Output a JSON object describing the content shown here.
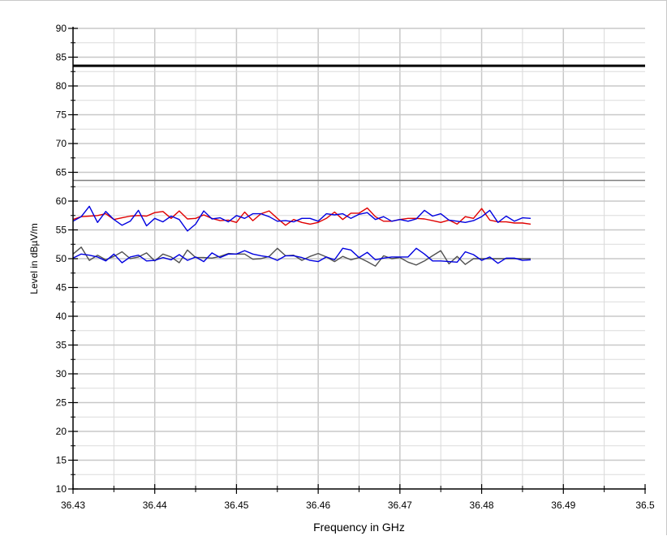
{
  "chart_data": {
    "type": "line",
    "xlabel": "Frequency in GHz",
    "ylabel": "Level in dBµV/m",
    "xlim": [
      36.43,
      36.5
    ],
    "ylim": [
      10,
      90
    ],
    "x_ticks": [
      36.43,
      36.44,
      36.45,
      36.46,
      36.47,
      36.48,
      36.49,
      36.5
    ],
    "x_tick_labels": [
      "36.43",
      "36.44",
      "36.45",
      "36.46",
      "36.47",
      "36.48",
      "36.49",
      "36.5"
    ],
    "y_ticks": [
      10,
      15,
      20,
      25,
      30,
      35,
      40,
      45,
      50,
      55,
      60,
      65,
      70,
      75,
      80,
      85,
      90
    ],
    "y_tick_labels": [
      "10",
      "15",
      "20",
      "25",
      "30",
      "35",
      "40",
      "45",
      "50",
      "55",
      "60",
      "65",
      "70",
      "75",
      "80",
      "85",
      "90"
    ],
    "grid": true,
    "limit_lines": [
      {
        "value": 83.5,
        "color": "#000000",
        "style": "thick"
      },
      {
        "value": 63.6,
        "color": "#808080",
        "style": "thin"
      }
    ],
    "series": [
      {
        "color": "#e00000",
        "x_start": 36.43,
        "x_step": 0.001,
        "values": [
          56.8,
          57.3,
          57.4,
          57.5,
          57.8,
          56.8,
          57.1,
          57.4,
          57.5,
          57.4,
          58.0,
          58.2,
          57.0,
          58.3,
          56.9,
          57.0,
          57.6,
          57.0,
          56.6,
          56.7,
          56.3,
          58.1,
          56.6,
          57.8,
          58.3,
          57.0,
          55.8,
          56.8,
          56.3,
          56.0,
          56.3,
          57.0,
          58.1,
          56.8,
          57.9,
          57.9,
          58.8,
          57.3,
          56.5,
          56.5,
          56.8,
          57.0,
          57.0,
          56.9,
          56.6,
          56.3,
          56.7,
          56.0,
          57.3,
          57.0,
          58.7,
          56.7,
          56.4,
          56.4,
          56.2,
          56.2,
          56.0
        ]
      },
      {
        "color": "#0000e0",
        "x_start": 36.43,
        "x_step": 0.001,
        "values": [
          56.5,
          57.3,
          59.1,
          56.3,
          58.2,
          56.8,
          55.8,
          56.5,
          58.4,
          55.7,
          57.0,
          56.4,
          57.4,
          56.8,
          54.8,
          56.0,
          58.3,
          56.9,
          57.1,
          56.4,
          57.5,
          57.0,
          57.8,
          57.8,
          57.3,
          56.5,
          56.6,
          56.4,
          57.0,
          57.0,
          56.5,
          57.8,
          57.6,
          57.8,
          57.0,
          57.7,
          58.0,
          56.8,
          57.3,
          56.5,
          56.8,
          56.5,
          56.9,
          58.4,
          57.4,
          57.8,
          56.7,
          56.5,
          56.3,
          56.6,
          57.3,
          58.4,
          56.3,
          57.4,
          56.5,
          57.1,
          57.0
        ]
      },
      {
        "color": "#505050",
        "x_start": 36.43,
        "x_step": 0.001,
        "values": [
          50.8,
          52.0,
          49.7,
          50.6,
          49.8,
          50.4,
          51.2,
          50.0,
          50.3,
          51.0,
          49.6,
          50.8,
          50.3,
          49.3,
          51.5,
          50.2,
          50.2,
          50.1,
          50.4,
          50.9,
          50.8,
          50.8,
          49.9,
          50.0,
          50.4,
          51.8,
          50.5,
          50.6,
          49.7,
          50.4,
          50.9,
          50.3,
          49.5,
          50.4,
          49.8,
          50.2,
          49.5,
          48.7,
          50.5,
          50.0,
          50.2,
          49.4,
          48.9,
          49.6,
          50.5,
          51.4,
          49.1,
          50.4,
          49.0,
          50.0,
          50.0,
          50.0,
          50.0,
          50.0,
          50.0,
          50.0,
          50.0
        ]
      },
      {
        "color": "#0000e0",
        "x_start": 36.43,
        "x_step": 0.001,
        "values": [
          50.1,
          50.8,
          50.6,
          50.3,
          49.6,
          50.8,
          49.3,
          50.3,
          50.6,
          49.6,
          49.7,
          50.2,
          49.8,
          50.7,
          49.7,
          50.3,
          49.5,
          51.0,
          50.2,
          50.8,
          50.8,
          51.4,
          50.8,
          50.5,
          50.3,
          49.7,
          50.5,
          50.5,
          50.2,
          49.7,
          49.5,
          50.3,
          49.8,
          51.8,
          51.5,
          50.2,
          51.1,
          49.8,
          50.1,
          50.3,
          50.3,
          50.3,
          51.8,
          50.8,
          49.6,
          49.6,
          49.5,
          49.4,
          51.2,
          50.7,
          49.7,
          50.3,
          49.2,
          50.1,
          50.1,
          49.7,
          49.8
        ]
      }
    ]
  }
}
